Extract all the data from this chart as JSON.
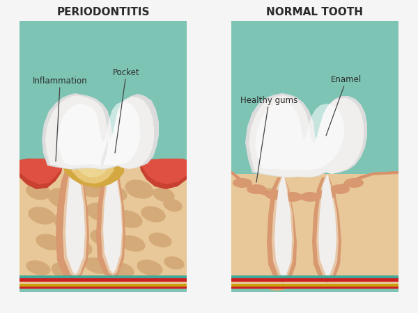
{
  "bg_color": "#f5f5f5",
  "panel_bg_teal": "#7ec4b5",
  "skin_color": "#e8c898",
  "skin_spots": "#d4aa78",
  "skin_border": "#c89060",
  "gum_red": "#c84030",
  "gum_red2": "#e05040",
  "tooth_white": "#f0efee",
  "tooth_shadow": "#dcdcdc",
  "tooth_outline": "#c8c8c0",
  "tartar_yellow": "#d4a840",
  "tartar_light": "#e8c878",
  "tartar_pale": "#f0dca0",
  "root_outer": "#d89870",
  "root_inner": "#e8c8a8",
  "nerve_red": "#cc2020",
  "nerve_blue": "#3355bb",
  "nerve_yellow": "#c8a010",
  "nerve_teal": "#40a898",
  "title_left": "PERIODONTITIS",
  "title_right": "NORMAL TOOTH",
  "label_inflammation": "Inflammation",
  "label_pocket": "Pocket",
  "label_healthy_gums": "Healthy gums",
  "label_enamel": "Enamel",
  "title_fontsize": 11,
  "label_fontsize": 8.5
}
